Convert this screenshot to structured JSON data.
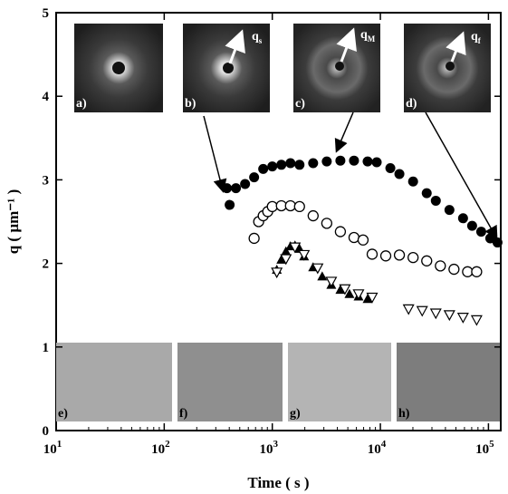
{
  "chart_data": {
    "type": "scatter",
    "xlabel": "Time ( s )",
    "ylabel": "q ( µm⁻¹ )",
    "xscale": "log",
    "xlim": [
      10,
      130000
    ],
    "ylim": [
      0,
      5
    ],
    "xticks": [
      {
        "value": 10,
        "label": "10",
        "exponent": "1"
      },
      {
        "value": 100,
        "label": "10",
        "exponent": "2"
      },
      {
        "value": 1000,
        "label": "10",
        "exponent": "3"
      },
      {
        "value": 10000,
        "label": "10",
        "exponent": "4"
      },
      {
        "value": 100000,
        "label": "10",
        "exponent": "5"
      }
    ],
    "yticks": [
      0,
      1,
      2,
      3,
      4,
      5
    ],
    "panel_labels": [
      "a)",
      "b)",
      "c)",
      "d)",
      "e)",
      "f)",
      "g)",
      "h)"
    ],
    "q_labels": [
      {
        "text": "q",
        "sub": "s"
      },
      {
        "text": "q",
        "sub": "M"
      },
      {
        "text": "q",
        "sub": "f"
      }
    ],
    "series": [
      {
        "marker": "filled-circle",
        "color": "#000000",
        "x": [
          403,
          380,
          461,
          560,
          679,
          824,
          1000,
          1213,
          1472,
          1786,
          2388,
          3192,
          4266,
          5702,
          7621,
          9250,
          12370,
          15000,
          20080,
          26850,
          32590,
          43560,
          58210,
          70630,
          85700,
          104000,
          121300
        ],
        "values": [
          2.7,
          2.9,
          2.9,
          2.95,
          3.03,
          3.13,
          3.16,
          3.18,
          3.2,
          3.18,
          3.2,
          3.22,
          3.23,
          3.23,
          3.22,
          3.21,
          3.14,
          3.07,
          2.98,
          2.84,
          2.75,
          2.64,
          2.54,
          2.45,
          2.38,
          2.3,
          2.25
        ]
      },
      {
        "marker": "open-circle",
        "color": "#000000",
        "x": [
          679,
          748,
          824,
          907,
          1000,
          1213,
          1472,
          1786,
          2388,
          3192,
          4266,
          5702,
          6918,
          8395,
          11220,
          15000,
          20080,
          26850,
          35900,
          47990,
          64100,
          77800
        ],
        "values": [
          2.3,
          2.5,
          2.57,
          2.62,
          2.68,
          2.69,
          2.69,
          2.68,
          2.57,
          2.48,
          2.38,
          2.31,
          2.28,
          2.11,
          2.09,
          2.1,
          2.07,
          2.03,
          1.97,
          1.93,
          1.9,
          1.9
        ]
      },
      {
        "marker": "filled-triangle",
        "color": "#000000",
        "x": [
          1101,
          1213,
          1337,
          1472,
          1622,
          1786,
          1968,
          2388,
          2897,
          3517,
          4266,
          5177,
          6281,
          7621
        ],
        "values": [
          1.92,
          2.04,
          2.14,
          2.2,
          2.21,
          2.17,
          2.08,
          1.95,
          1.84,
          1.74,
          1.68,
          1.63,
          1.6,
          1.57
        ]
      },
      {
        "marker": "open-triangle-down",
        "color": "#000000",
        "x": [
          1101,
          1337,
          1622,
          1968,
          2630,
          3517,
          4700,
          6281,
          8395,
          18240,
          24380,
          32590,
          43560,
          58210,
          77800
        ],
        "values": [
          1.9,
          2.06,
          2.2,
          2.11,
          1.95,
          1.79,
          1.7,
          1.64,
          1.6,
          1.46,
          1.44,
          1.41,
          1.39,
          1.36,
          1.33
        ]
      }
    ]
  }
}
